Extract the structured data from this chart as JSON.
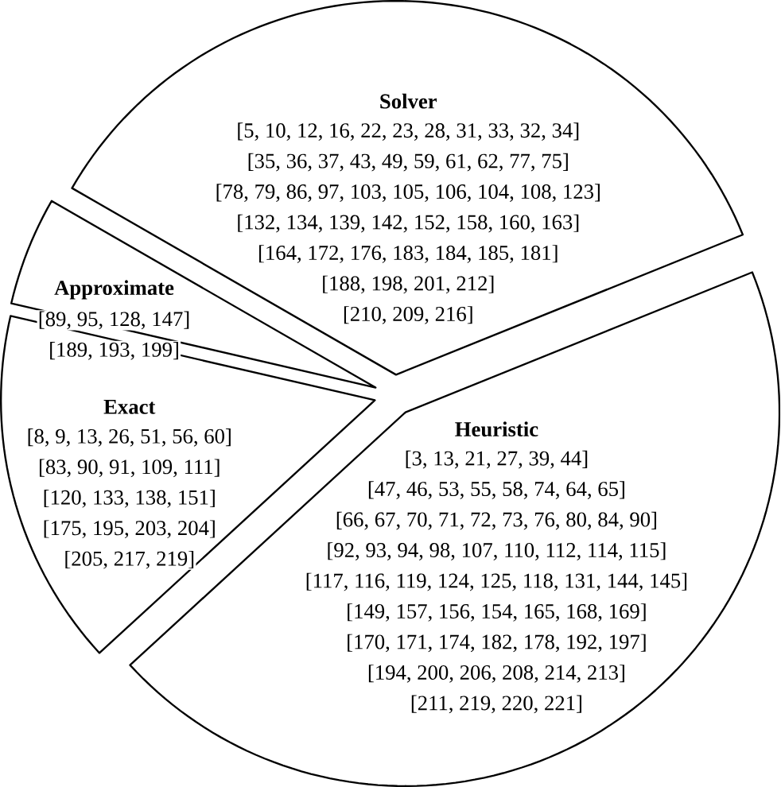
{
  "chart_data": {
    "type": "pie",
    "categories": [
      "Solver",
      "Approximate",
      "Exact",
      "Heuristic"
    ],
    "values": [
      35.57,
      4.7,
      15.44,
      44.29
    ],
    "colors": [
      "#ffffff",
      "#ffffff",
      "#ffffff",
      "#ffffff"
    ],
    "annotations": [
      "[5, 10, 12, 16, 22, 23, 28, 31, 33, 32, 34]",
      "[35, 36, 37, 43, 49, 59, 61, 62, 77, 75]",
      "[78, 79, 86, 97, 103, 105, 106, 104, 108, 123]",
      "[132, 134, 139, 142, 152, 158, 160, 163]",
      "[164, 172, 176, 183, 184, 185, 181]",
      "[188, 198, 201, 212]",
      "[210, 209, 216]",
      "[89, 95, 128, 147]",
      "[189, 193, 199]",
      "[8, 9, 13, 26, 51, 56, 60]",
      "[83, 90, 91, 109, 111]",
      "[120, 133, 138, 151]",
      "[175, 195, 203, 204]",
      "[205, 217, 219]",
      "[3, 13, 21, 27, 39, 44]",
      "[47, 46, 53, 55, 58, 74, 64, 65]",
      "[66, 67, 70, 71, 72, 73, 76, 80, 84, 90]",
      "[92, 93, 94, 98, 107, 110, 112, 114, 115]",
      "[117, 116, 119, 124, 125, 118, 131, 144, 145]",
      "[149, 157, 156, 154, 165, 168, 169]",
      "[170, 171, 174, 182, 178, 192, 197]",
      "[194, 200, 206, 208, 214, 213]",
      "[211, 219, 220, 221]"
    ]
  }
}
